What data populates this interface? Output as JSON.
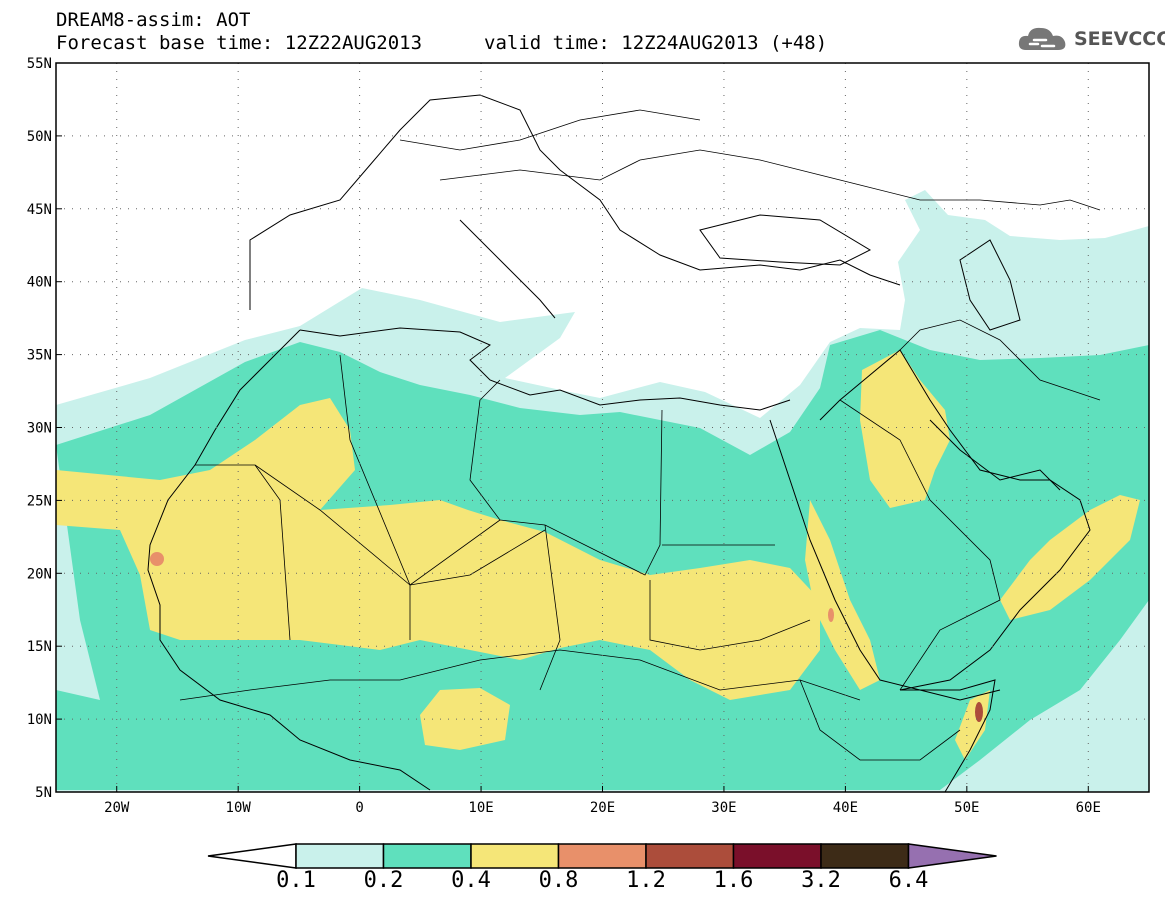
{
  "header": {
    "title": "DREAM8-assim: AOT",
    "base_time": "Forecast base time: 12Z22AUG2013",
    "valid_time": "valid time: 12Z24AUG2013 (+48)",
    "logo": "SEEVCCC"
  },
  "map": {
    "lon_range": [
      -25,
      65
    ],
    "lat_range": [
      5,
      55
    ],
    "lat_labels": [
      "55N",
      "50N",
      "45N",
      "40N",
      "35N",
      "30N",
      "25N",
      "20N",
      "15N",
      "10N",
      "5N"
    ],
    "lon_labels": [
      "20W",
      "10W",
      "0",
      "10E",
      "20E",
      "30E",
      "40E",
      "50E",
      "60E"
    ],
    "lat_values": [
      55,
      50,
      45,
      40,
      35,
      30,
      25,
      20,
      15,
      10,
      5
    ],
    "lon_values": [
      -20,
      -10,
      0,
      10,
      20,
      30,
      40,
      50,
      60
    ],
    "gridlines": true
  },
  "colorbar": {
    "levels": [
      "0.1",
      "0.2",
      "0.4",
      "0.8",
      "1.2",
      "1.6",
      "3.2",
      "6.4"
    ],
    "colors": [
      "#ffffff",
      "#c9f1eb",
      "#5fe0bd",
      "#f5e678",
      "#e8906a",
      "#ac4d3b",
      "#7a0f2a",
      "#3d2b17",
      "#9670b0"
    ]
  }
}
